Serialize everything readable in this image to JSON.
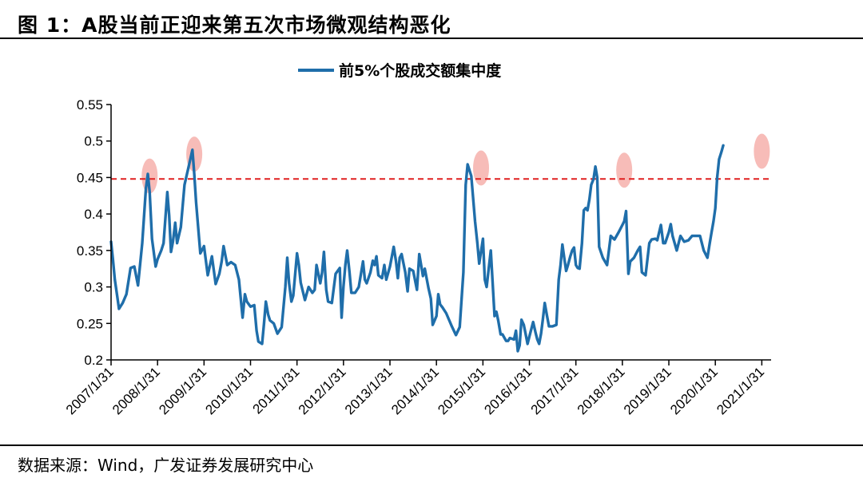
{
  "figure": {
    "title": "图 1：A股当前正迎来第五次市场微观结构恶化",
    "source": "数据来源：Wind，广发证券发展研究中心"
  },
  "chart_data": {
    "type": "line",
    "title": "",
    "xlabel": "",
    "ylabel": "",
    "ylim": [
      0.2,
      0.55
    ],
    "yticks": [
      0.2,
      0.25,
      0.3,
      0.35,
      0.4,
      0.45,
      0.5,
      0.55
    ],
    "ytick_labels": [
      "0.2",
      "0.25",
      "0.3",
      "0.35",
      "0.4",
      "0.45",
      "0.5",
      "0.55"
    ],
    "xlim": [
      2007.0,
      2021.2
    ],
    "xticks": [
      2007,
      2008,
      2009,
      2010,
      2011,
      2012,
      2013,
      2014,
      2015,
      2016,
      2017,
      2018,
      2019,
      2020,
      2021
    ],
    "xtick_labels": [
      "2007/1/31",
      "2008/1/31",
      "2009/1/31",
      "2010/1/31",
      "2011/1/31",
      "2012/1/31",
      "2013/1/31",
      "2014/1/31",
      "2015/1/31",
      "2016/1/31",
      "2017/1/31",
      "2018/1/31",
      "2019/1/31",
      "2020/1/31",
      "2021/1/31"
    ],
    "grid": false,
    "legend_position": "top-center",
    "reference_line": {
      "value": 0.448,
      "color": "#e02020",
      "style": "dashed"
    },
    "highlights": [
      {
        "x": 2007.83,
        "y": 0.452
      },
      {
        "x": 2008.79,
        "y": 0.482
      },
      {
        "x": 2014.96,
        "y": 0.463
      },
      {
        "x": 2018.04,
        "y": 0.46
      },
      {
        "x": 2021.0,
        "y": 0.486
      }
    ],
    "series": [
      {
        "name": "前5%个股成交额集中度",
        "color": "#1f6eaa",
        "points": [
          [
            2007.0,
            0.362
          ],
          [
            2007.04,
            0.338
          ],
          [
            2007.08,
            0.31
          ],
          [
            2007.13,
            0.288
          ],
          [
            2007.17,
            0.27
          ],
          [
            2007.25,
            0.278
          ],
          [
            2007.33,
            0.29
          ],
          [
            2007.42,
            0.326
          ],
          [
            2007.5,
            0.328
          ],
          [
            2007.58,
            0.302
          ],
          [
            2007.67,
            0.36
          ],
          [
            2007.75,
            0.435
          ],
          [
            2007.79,
            0.455
          ],
          [
            2007.83,
            0.43
          ],
          [
            2007.88,
            0.366
          ],
          [
            2007.96,
            0.328
          ],
          [
            2008.0,
            0.338
          ],
          [
            2008.08,
            0.35
          ],
          [
            2008.13,
            0.36
          ],
          [
            2008.21,
            0.43
          ],
          [
            2008.25,
            0.398
          ],
          [
            2008.29,
            0.348
          ],
          [
            2008.33,
            0.362
          ],
          [
            2008.38,
            0.388
          ],
          [
            2008.42,
            0.36
          ],
          [
            2008.5,
            0.382
          ],
          [
            2008.58,
            0.44
          ],
          [
            2008.67,
            0.465
          ],
          [
            2008.75,
            0.488
          ],
          [
            2008.79,
            0.455
          ],
          [
            2008.83,
            0.416
          ],
          [
            2008.92,
            0.346
          ],
          [
            2009.0,
            0.356
          ],
          [
            2009.08,
            0.316
          ],
          [
            2009.17,
            0.342
          ],
          [
            2009.25,
            0.304
          ],
          [
            2009.33,
            0.318
          ],
          [
            2009.38,
            0.335
          ],
          [
            2009.42,
            0.356
          ],
          [
            2009.5,
            0.33
          ],
          [
            2009.58,
            0.334
          ],
          [
            2009.67,
            0.33
          ],
          [
            2009.75,
            0.31
          ],
          [
            2009.83,
            0.258
          ],
          [
            2009.88,
            0.29
          ],
          [
            2009.92,
            0.28
          ],
          [
            2010.0,
            0.273
          ],
          [
            2010.08,
            0.275
          ],
          [
            2010.13,
            0.24
          ],
          [
            2010.17,
            0.225
          ],
          [
            2010.25,
            0.222
          ],
          [
            2010.29,
            0.25
          ],
          [
            2010.33,
            0.28
          ],
          [
            2010.38,
            0.262
          ],
          [
            2010.42,
            0.254
          ],
          [
            2010.5,
            0.25
          ],
          [
            2010.58,
            0.236
          ],
          [
            2010.67,
            0.245
          ],
          [
            2010.75,
            0.3
          ],
          [
            2010.79,
            0.34
          ],
          [
            2010.83,
            0.305
          ],
          [
            2010.88,
            0.28
          ],
          [
            2010.92,
            0.288
          ],
          [
            2011.0,
            0.346
          ],
          [
            2011.04,
            0.33
          ],
          [
            2011.08,
            0.306
          ],
          [
            2011.17,
            0.282
          ],
          [
            2011.25,
            0.3
          ],
          [
            2011.33,
            0.292
          ],
          [
            2011.38,
            0.296
          ],
          [
            2011.42,
            0.33
          ],
          [
            2011.5,
            0.305
          ],
          [
            2011.54,
            0.32
          ],
          [
            2011.58,
            0.348
          ],
          [
            2011.63,
            0.296
          ],
          [
            2011.67,
            0.28
          ],
          [
            2011.75,
            0.278
          ],
          [
            2011.83,
            0.318
          ],
          [
            2011.92,
            0.326
          ],
          [
            2011.96,
            0.258
          ],
          [
            2012.0,
            0.3
          ],
          [
            2012.04,
            0.33
          ],
          [
            2012.08,
            0.35
          ],
          [
            2012.13,
            0.32
          ],
          [
            2012.17,
            0.292
          ],
          [
            2012.25,
            0.292
          ],
          [
            2012.33,
            0.3
          ],
          [
            2012.42,
            0.335
          ],
          [
            2012.46,
            0.31
          ],
          [
            2012.5,
            0.305
          ],
          [
            2012.58,
            0.32
          ],
          [
            2012.63,
            0.336
          ],
          [
            2012.67,
            0.33
          ],
          [
            2012.71,
            0.342
          ],
          [
            2012.75,
            0.316
          ],
          [
            2012.83,
            0.312
          ],
          [
            2012.88,
            0.33
          ],
          [
            2012.92,
            0.31
          ],
          [
            2013.0,
            0.328
          ],
          [
            2013.08,
            0.355
          ],
          [
            2013.13,
            0.335
          ],
          [
            2013.17,
            0.312
          ],
          [
            2013.21,
            0.34
          ],
          [
            2013.25,
            0.345
          ],
          [
            2013.33,
            0.32
          ],
          [
            2013.38,
            0.294
          ],
          [
            2013.42,
            0.325
          ],
          [
            2013.5,
            0.322
          ],
          [
            2013.58,
            0.296
          ],
          [
            2013.63,
            0.345
          ],
          [
            2013.67,
            0.33
          ],
          [
            2013.71,
            0.315
          ],
          [
            2013.75,
            0.325
          ],
          [
            2013.83,
            0.298
          ],
          [
            2013.88,
            0.284
          ],
          [
            2013.92,
            0.248
          ],
          [
            2014.0,
            0.26
          ],
          [
            2014.04,
            0.29
          ],
          [
            2014.08,
            0.276
          ],
          [
            2014.13,
            0.272
          ],
          [
            2014.21,
            0.264
          ],
          [
            2014.29,
            0.252
          ],
          [
            2014.33,
            0.246
          ],
          [
            2014.42,
            0.234
          ],
          [
            2014.5,
            0.245
          ],
          [
            2014.58,
            0.32
          ],
          [
            2014.63,
            0.44
          ],
          [
            2014.67,
            0.468
          ],
          [
            2014.75,
            0.452
          ],
          [
            2014.83,
            0.39
          ],
          [
            2014.88,
            0.36
          ],
          [
            2014.92,
            0.332
          ],
          [
            2015.0,
            0.366
          ],
          [
            2015.04,
            0.31
          ],
          [
            2015.08,
            0.3
          ],
          [
            2015.17,
            0.35
          ],
          [
            2015.25,
            0.26
          ],
          [
            2015.29,
            0.266
          ],
          [
            2015.33,
            0.254
          ],
          [
            2015.38,
            0.235
          ],
          [
            2015.42,
            0.235
          ],
          [
            2015.5,
            0.226
          ],
          [
            2015.54,
            0.226
          ],
          [
            2015.58,
            0.23
          ],
          [
            2015.67,
            0.228
          ],
          [
            2015.71,
            0.24
          ],
          [
            2015.75,
            0.212
          ],
          [
            2015.79,
            0.22
          ],
          [
            2015.83,
            0.255
          ],
          [
            2015.88,
            0.248
          ],
          [
            2015.92,
            0.235
          ],
          [
            2015.96,
            0.222
          ],
          [
            2016.0,
            0.232
          ],
          [
            2016.08,
            0.252
          ],
          [
            2016.13,
            0.238
          ],
          [
            2016.17,
            0.228
          ],
          [
            2016.21,
            0.222
          ],
          [
            2016.25,
            0.236
          ],
          [
            2016.29,
            0.256
          ],
          [
            2016.33,
            0.278
          ],
          [
            2016.38,
            0.26
          ],
          [
            2016.42,
            0.246
          ],
          [
            2016.5,
            0.246
          ],
          [
            2016.58,
            0.248
          ],
          [
            2016.63,
            0.31
          ],
          [
            2016.67,
            0.33
          ],
          [
            2016.71,
            0.358
          ],
          [
            2016.75,
            0.34
          ],
          [
            2016.79,
            0.322
          ],
          [
            2016.83,
            0.33
          ],
          [
            2016.88,
            0.342
          ],
          [
            2016.92,
            0.35
          ],
          [
            2016.96,
            0.354
          ],
          [
            2017.0,
            0.33
          ],
          [
            2017.04,
            0.326
          ],
          [
            2017.08,
            0.325
          ],
          [
            2017.13,
            0.36
          ],
          [
            2017.17,
            0.405
          ],
          [
            2017.21,
            0.408
          ],
          [
            2017.25,
            0.405
          ],
          [
            2017.29,
            0.42
          ],
          [
            2017.33,
            0.44
          ],
          [
            2017.38,
            0.448
          ],
          [
            2017.42,
            0.465
          ],
          [
            2017.46,
            0.45
          ],
          [
            2017.5,
            0.355
          ],
          [
            2017.58,
            0.34
          ],
          [
            2017.67,
            0.33
          ],
          [
            2017.75,
            0.37
          ],
          [
            2017.83,
            0.365
          ],
          [
            2017.92,
            0.375
          ],
          [
            2018.0,
            0.385
          ],
          [
            2018.04,
            0.39
          ],
          [
            2018.08,
            0.404
          ],
          [
            2018.13,
            0.318
          ],
          [
            2018.17,
            0.335
          ],
          [
            2018.25,
            0.34
          ],
          [
            2018.33,
            0.35
          ],
          [
            2018.38,
            0.355
          ],
          [
            2018.42,
            0.32
          ],
          [
            2018.5,
            0.316
          ],
          [
            2018.58,
            0.36
          ],
          [
            2018.63,
            0.365
          ],
          [
            2018.71,
            0.366
          ],
          [
            2018.75,
            0.364
          ],
          [
            2018.83,
            0.385
          ],
          [
            2018.88,
            0.36
          ],
          [
            2018.92,
            0.36
          ],
          [
            2019.0,
            0.375
          ],
          [
            2019.04,
            0.386
          ],
          [
            2019.08,
            0.37
          ],
          [
            2019.17,
            0.35
          ],
          [
            2019.25,
            0.37
          ],
          [
            2019.33,
            0.362
          ],
          [
            2019.42,
            0.364
          ],
          [
            2019.5,
            0.37
          ],
          [
            2019.58,
            0.37
          ],
          [
            2019.67,
            0.37
          ],
          [
            2019.75,
            0.35
          ],
          [
            2019.83,
            0.34
          ],
          [
            2019.88,
            0.36
          ],
          [
            2019.92,
            0.375
          ],
          [
            2019.96,
            0.39
          ],
          [
            2020.0,
            0.408
          ],
          [
            2020.04,
            0.45
          ],
          [
            2020.08,
            0.475
          ],
          [
            2020.13,
            0.485
          ],
          [
            2020.17,
            0.494
          ]
        ]
      }
    ]
  }
}
